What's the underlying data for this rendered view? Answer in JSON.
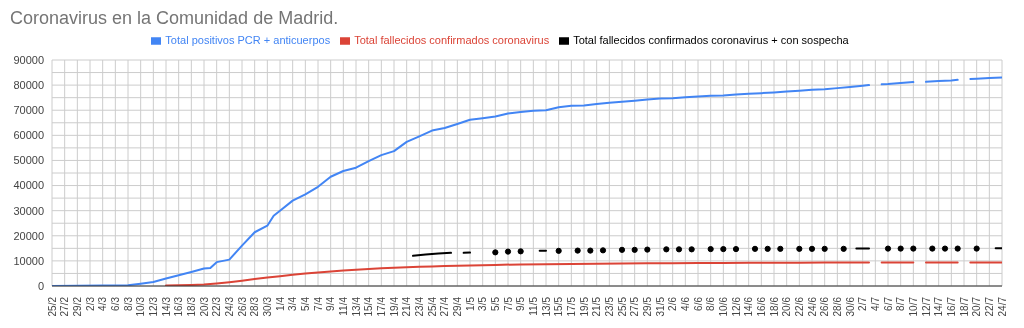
{
  "chart_data": {
    "type": "line",
    "title": "Coronavirus en la Comunidad de Madrid.",
    "xlim": [
      "--02-25",
      "--07-24"
    ],
    "xticks": [
      {
        "value": "--02-25",
        "label": "25/2"
      },
      {
        "value": "--02-27",
        "label": "27/2"
      },
      {
        "value": "--02-29",
        "label": "29/2"
      },
      {
        "value": "--03-02",
        "label": "2/3"
      },
      {
        "value": "--03-04",
        "label": "4/3"
      },
      {
        "value": "--03-06",
        "label": "6/3"
      },
      {
        "value": "--03-08",
        "label": "8/3"
      },
      {
        "value": "--03-10",
        "label": "10/3"
      },
      {
        "value": "--03-12",
        "label": "12/3"
      },
      {
        "value": "--03-14",
        "label": "14/3"
      },
      {
        "value": "--03-16",
        "label": "16/3"
      },
      {
        "value": "--03-18",
        "label": "18/3"
      },
      {
        "value": "--03-20",
        "label": "20/3"
      },
      {
        "value": "--03-22",
        "label": "22/3"
      },
      {
        "value": "--03-24",
        "label": "24/3"
      },
      {
        "value": "--03-26",
        "label": "26/3"
      },
      {
        "value": "--03-28",
        "label": "28/3"
      },
      {
        "value": "--03-30",
        "label": "30/3"
      },
      {
        "value": "--04-01",
        "label": "1/4"
      },
      {
        "value": "--04-03",
        "label": "3/4"
      },
      {
        "value": "--04-05",
        "label": "5/4"
      },
      {
        "value": "--04-07",
        "label": "7/4"
      },
      {
        "value": "--04-09",
        "label": "9/4"
      },
      {
        "value": "--04-11",
        "label": "11/4"
      },
      {
        "value": "--04-13",
        "label": "13/4"
      },
      {
        "value": "--04-15",
        "label": "15/4"
      },
      {
        "value": "--04-17",
        "label": "17/4"
      },
      {
        "value": "--04-19",
        "label": "19/4"
      },
      {
        "value": "--04-21",
        "label": "21/4"
      },
      {
        "value": "--04-23",
        "label": "23/4"
      },
      {
        "value": "--04-25",
        "label": "25/4"
      },
      {
        "value": "--04-27",
        "label": "27/4"
      },
      {
        "value": "--04-29",
        "label": "29/4"
      },
      {
        "value": "--05-01",
        "label": "1/5"
      },
      {
        "value": "--05-03",
        "label": "3/5"
      },
      {
        "value": "--05-05",
        "label": "5/5"
      },
      {
        "value": "--05-07",
        "label": "7/5"
      },
      {
        "value": "--05-09",
        "label": "9/5"
      },
      {
        "value": "--05-11",
        "label": "11/5"
      },
      {
        "value": "--05-13",
        "label": "13/5"
      },
      {
        "value": "--05-15",
        "label": "15/5"
      },
      {
        "value": "--05-17",
        "label": "17/5"
      },
      {
        "value": "--05-19",
        "label": "19/5"
      },
      {
        "value": "--05-21",
        "label": "21/5"
      },
      {
        "value": "--05-23",
        "label": "23/5"
      },
      {
        "value": "--05-25",
        "label": "25/5"
      },
      {
        "value": "--05-27",
        "label": "27/5"
      },
      {
        "value": "--05-29",
        "label": "29/5"
      },
      {
        "value": "--05-31",
        "label": "31/5"
      },
      {
        "value": "--06-02",
        "label": "2/6"
      },
      {
        "value": "--06-04",
        "label": "4/6"
      },
      {
        "value": "--06-06",
        "label": "6/6"
      },
      {
        "value": "--06-08",
        "label": "8/6"
      },
      {
        "value": "--06-10",
        "label": "10/6"
      },
      {
        "value": "--06-12",
        "label": "12/6"
      },
      {
        "value": "--06-14",
        "label": "14/6"
      },
      {
        "value": "--06-16",
        "label": "16/6"
      },
      {
        "value": "--06-18",
        "label": "18/6"
      },
      {
        "value": "--06-20",
        "label": "20/6"
      },
      {
        "value": "--06-22",
        "label": "22/6"
      },
      {
        "value": "--06-24",
        "label": "24/6"
      },
      {
        "value": "--06-26",
        "label": "26/6"
      },
      {
        "value": "--06-28",
        "label": "28/6"
      },
      {
        "value": "--06-30",
        "label": "30/6"
      },
      {
        "value": "--07-02",
        "label": "2/7"
      },
      {
        "value": "--07-04",
        "label": "4/7"
      },
      {
        "value": "--07-06",
        "label": "6/7"
      },
      {
        "value": "--07-08",
        "label": "8/7"
      },
      {
        "value": "--07-10",
        "label": "10/7"
      },
      {
        "value": "--07-12",
        "label": "12/7"
      },
      {
        "value": "--07-14",
        "label": "14/7"
      },
      {
        "value": "--07-16",
        "label": "16/7"
      },
      {
        "value": "--07-18",
        "label": "18/7"
      },
      {
        "value": "--07-20",
        "label": "20/7"
      },
      {
        "value": "--07-22",
        "label": "22/7"
      },
      {
        "value": "--07-24",
        "label": "24/7"
      }
    ],
    "ylim": [
      0,
      90000
    ],
    "yticks": [
      0,
      {
        "value": 5000,
        "label": null
      },
      10000,
      {
        "value": 15000,
        "label": null
      },
      20000,
      {
        "value": 25000,
        "label": null
      },
      30000,
      {
        "value": 35000,
        "label": null
      },
      40000,
      {
        "value": 45000,
        "label": null
      },
      50000,
      {
        "value": 55000,
        "label": null
      },
      60000,
      {
        "value": 65000,
        "label": null
      },
      70000,
      {
        "value": 75000,
        "label": null
      },
      80000,
      {
        "value": 85000,
        "label": null
      },
      90000
    ],
    "grid": true,
    "legend": "top",
    "series": [
      {
        "name": "Total positivos PCR + anticuerpos",
        "color": "#4285f4",
        "x": [
          "--02-25",
          "--03-08",
          "--03-10",
          "--03-12",
          "--03-14",
          "--03-16",
          "--03-18",
          "--03-20",
          "--03-21",
          "--03-22",
          "--03-24",
          "--03-26",
          "--03-28",
          "--03-30",
          "--03-31",
          "--04-01",
          "--04-03",
          "--04-05",
          "--04-07",
          "--04-09",
          "--04-11",
          "--04-13",
          "--04-15",
          "--04-17",
          "--04-19",
          "--04-21",
          "--04-23",
          "--04-25",
          "--04-27",
          "--04-29",
          "--05-01",
          "--05-03",
          "--05-05",
          "--05-07",
          "--05-09",
          "--05-11",
          "--05-13",
          "--05-15",
          "--05-17",
          "--05-19",
          "--05-21",
          "--05-23",
          "--05-25",
          "--05-27",
          "--05-29",
          "--05-31",
          "--06-02",
          "--06-04",
          "--06-06",
          "--06-08",
          "--06-10",
          "--06-12",
          "--06-14",
          "--06-16",
          "--06-18",
          "--06-20",
          "--06-22",
          "--06-24",
          "--06-26",
          "--06-28",
          "--06-30",
          "--07-02",
          "--07-03",
          "--07-04",
          "--07-05",
          "--07-06",
          "--07-08",
          "--07-10",
          "--07-11",
          "--07-12",
          "--07-14",
          "--07-16",
          "--07-17",
          "--07-18",
          "--07-19",
          "--07-20",
          "--07-22",
          "--07-24"
        ],
        "values": [
          0,
          300,
          900,
          1600,
          3000,
          4300,
          5600,
          7000,
          7200,
          9500,
          10500,
          16100,
          21400,
          24000,
          28000,
          30000,
          34000,
          36500,
          39500,
          43500,
          45800,
          47100,
          49700,
          52100,
          53700,
          57400,
          59600,
          61900,
          62900,
          64500,
          66200,
          66800,
          67500,
          68700,
          69300,
          69800,
          70000,
          71200,
          71800,
          71900,
          72500,
          73000,
          73400,
          73800,
          74300,
          74700,
          74800,
          75200,
          75500,
          75800,
          75900,
          76300,
          76600,
          76800,
          77100,
          77500,
          77800,
          78200,
          78400,
          78800,
          79200,
          79700,
          80000,
          null,
          80300,
          80400,
          80800,
          81200,
          null,
          81300,
          81600,
          81800,
          82100,
          null,
          82400,
          82500,
          82800,
          83000
        ]
      },
      {
        "name": "Total fallecidos confirmados coronavirus",
        "color": "#db4437",
        "x": [
          "--03-14",
          "--03-16",
          "--03-18",
          "--03-20",
          "--03-22",
          "--03-24",
          "--03-26",
          "--03-28",
          "--03-30",
          "--04-01",
          "--04-03",
          "--04-05",
          "--04-07",
          "--04-09",
          "--04-11",
          "--04-13",
          "--04-15",
          "--04-17",
          "--04-19",
          "--04-21",
          "--04-23",
          "--04-25",
          "--04-27",
          "--04-29",
          "--05-01",
          "--05-05",
          "--05-09",
          "--05-13",
          "--05-17",
          "--05-21",
          "--05-25",
          "--05-29",
          "--06-02",
          "--06-06",
          "--06-10",
          "--06-14",
          "--06-18",
          "--06-22",
          "--06-26",
          "--06-30",
          "--07-03",
          "--07-04",
          "--07-05",
          "--07-10",
          "--07-11",
          "--07-12",
          "--07-17",
          "--07-18",
          "--07-19",
          "--07-24"
        ],
        "values": [
          200,
          300,
          400,
          600,
          1000,
          1500,
          2100,
          2800,
          3400,
          3900,
          4500,
          5000,
          5400,
          5800,
          6200,
          6500,
          6800,
          7100,
          7300,
          7500,
          7700,
          7800,
          8000,
          8100,
          8200,
          8400,
          8600,
          8700,
          8800,
          8900,
          9000,
          9100,
          9100,
          9200,
          9200,
          9300,
          9300,
          9300,
          9400,
          9400,
          9400,
          null,
          9400,
          9400,
          null,
          9400,
          9400,
          null,
          9400,
          9400
        ]
      },
      {
        "name": "Total fallecidos confirmados coronavirus + con sospecha",
        "color": "#000000",
        "x": [
          "--04-22",
          "--04-24",
          "--04-26",
          "--04-28",
          "--04-29",
          "--04-30",
          "--05-01",
          "--05-03",
          "--05-05",
          "--05-06",
          "--05-07",
          "--05-08",
          "--05-09",
          "--05-10",
          "--05-12",
          "--05-13",
          "--05-14",
          "--05-15",
          "--05-16",
          "--05-18",
          "--05-19",
          "--05-20",
          "--05-21",
          "--05-22",
          "--05-24",
          "--05-25",
          "--05-26",
          "--05-27",
          "--05-28",
          "--05-29",
          "--05-30",
          "--06-01",
          "--06-02",
          "--06-03",
          "--06-04",
          "--06-05",
          "--06-06",
          "--06-08",
          "--06-09",
          "--06-10",
          "--06-11",
          "--06-12",
          "--06-13",
          "--06-15",
          "--06-16",
          "--06-17",
          "--06-18",
          "--06-19",
          "--06-20",
          "--06-22",
          "--06-23",
          "--06-24",
          "--06-25",
          "--06-26",
          "--06-27",
          "--06-29",
          "--06-30",
          "--07-01",
          "--07-03",
          "--07-04",
          "--07-06",
          "--07-07",
          "--07-08",
          "--07-09",
          "--07-10",
          "--07-11",
          "--07-13",
          "--07-14",
          "--07-15",
          "--07-16",
          "--07-17",
          "--07-18",
          "--07-20",
          "--07-21",
          "--07-23",
          "--07-24"
        ],
        "values": [
          12000,
          12500,
          12900,
          13200,
          null,
          13200,
          13300,
          null,
          13400,
          null,
          13700,
          null,
          13800,
          null,
          14000,
          14000,
          null,
          14000,
          null,
          14100,
          null,
          14100,
          null,
          14200,
          null,
          14400,
          null,
          14400,
          null,
          14500,
          null,
          14600,
          null,
          14600,
          null,
          14600,
          null,
          14700,
          null,
          14700,
          null,
          14700,
          null,
          14800,
          null,
          14800,
          null,
          14800,
          null,
          14800,
          null,
          14800,
          null,
          14800,
          null,
          14800,
          null,
          14900,
          14900,
          null,
          14900,
          null,
          14900,
          null,
          14900,
          null,
          14900,
          null,
          14900,
          null,
          14900,
          null,
          14900,
          null,
          15000,
          15000
        ]
      }
    ]
  }
}
